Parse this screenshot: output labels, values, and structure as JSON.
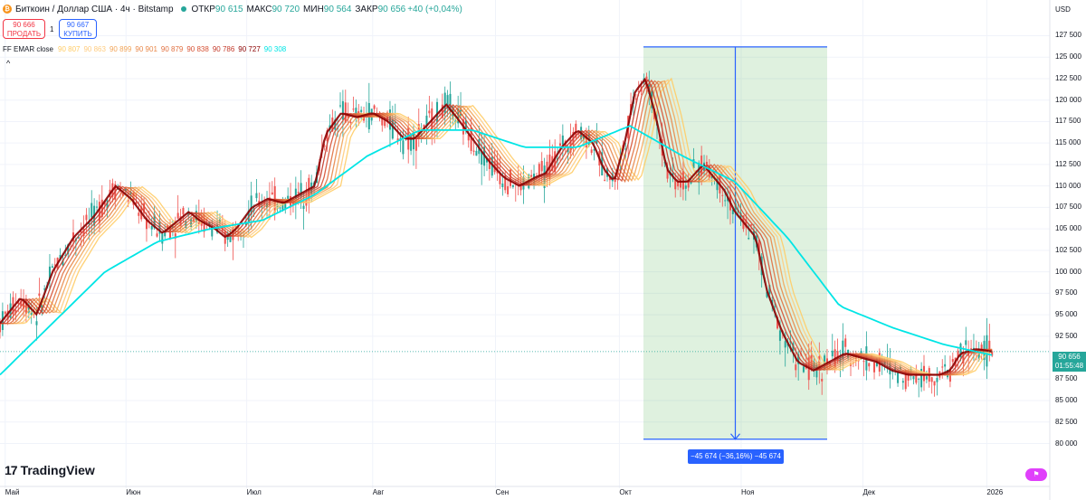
{
  "header": {
    "title": "Биткоин / Доллар США · 4ч · Bitstamp",
    "ohlc": [
      {
        "label": "ОТКР",
        "value": "90 615"
      },
      {
        "label": "МАКС",
        "value": "90 720"
      },
      {
        "label": "МИН",
        "value": "90 564"
      },
      {
        "label": "ЗАКР",
        "value": "90 656"
      }
    ],
    "change": "+40 (+0,04%)"
  },
  "trade": {
    "sell_price": "90 666",
    "sell_label": "ПРОДАТЬ",
    "spread": "1",
    "buy_price": "90 667",
    "buy_label": "КУПИТЬ"
  },
  "indicator": {
    "name": "FF EMAR close",
    "values": [
      "90 807",
      "90 863",
      "90 899",
      "90 901",
      "90 879",
      "90 838",
      "90 786",
      "90 727",
      "90 308"
    ],
    "colors": [
      "#ffcc66",
      "#ffcc80",
      "#f2a65a",
      "#e8884a",
      "#e07040",
      "#d65033",
      "#c43a2a",
      "#8b0000",
      "#00e5e5"
    ],
    "collapse_glyph": "^"
  },
  "price_axis": {
    "currency": "USD",
    "ticks": [
      "127 500",
      "125 000",
      "122 500",
      "120 000",
      "117 500",
      "115 000",
      "112 500",
      "110 000",
      "107 500",
      "105 000",
      "102 500",
      "100 000",
      "97 500",
      "95 000",
      "92 500",
      "87 500",
      "85 000",
      "82 500",
      "80 000"
    ],
    "tick_values": [
      127500,
      125000,
      122500,
      120000,
      117500,
      115000,
      112500,
      110000,
      107500,
      105000,
      102500,
      100000,
      97500,
      95000,
      92500,
      87500,
      85000,
      82500,
      80000
    ],
    "last_price": "90 656",
    "countdown": "01:55:48"
  },
  "time_axis": {
    "labels": [
      "Май",
      "Июн",
      "Июл",
      "Авг",
      "Сен",
      "Окт",
      "Ноя",
      "Дек",
      "2026"
    ]
  },
  "measure": {
    "label": "−45 674 (−36,16%) −45 674"
  },
  "brand": {
    "logo_mark": "17",
    "name": "TradingView"
  },
  "chart_data": {
    "type": "line",
    "title": "Биткоин / Доллар США · 4ч · Bitstamp",
    "x": [
      "Май",
      "Июн",
      "Июл",
      "Авг",
      "Сен",
      "Окт",
      "Ноя",
      "Дек",
      "2026"
    ],
    "ylim": [
      79000,
      128500
    ],
    "series": [
      {
        "name": "FF EMAR close",
        "values": [
          [
            0.0,
            94000
          ],
          [
            0.02,
            97000
          ],
          [
            0.035,
            95000
          ],
          [
            0.05,
            100000
          ],
          [
            0.07,
            104000
          ],
          [
            0.09,
            106500
          ],
          [
            0.11,
            110000
          ],
          [
            0.125,
            108500
          ],
          [
            0.14,
            106000
          ],
          [
            0.155,
            104500
          ],
          [
            0.165,
            105500
          ],
          [
            0.18,
            107000
          ],
          [
            0.19,
            106000
          ],
          [
            0.205,
            105000
          ],
          [
            0.215,
            104000
          ],
          [
            0.225,
            105000
          ],
          [
            0.24,
            107500
          ],
          [
            0.255,
            108500
          ],
          [
            0.27,
            108000
          ],
          [
            0.285,
            109000
          ],
          [
            0.3,
            110000
          ],
          [
            0.31,
            116000
          ],
          [
            0.325,
            118500
          ],
          [
            0.34,
            118000
          ],
          [
            0.355,
            118500
          ],
          [
            0.37,
            117500
          ],
          [
            0.385,
            115500
          ],
          [
            0.395,
            115500
          ],
          [
            0.41,
            117500
          ],
          [
            0.425,
            119500
          ],
          [
            0.435,
            118000
          ],
          [
            0.45,
            115500
          ],
          [
            0.465,
            113000
          ],
          [
            0.48,
            111000
          ],
          [
            0.495,
            110000
          ],
          [
            0.51,
            111000
          ],
          [
            0.52,
            111500
          ],
          [
            0.535,
            114500
          ],
          [
            0.55,
            116500
          ],
          [
            0.565,
            115000
          ],
          [
            0.575,
            112000
          ],
          [
            0.585,
            110500
          ],
          [
            0.595,
            115000
          ],
          [
            0.605,
            121000
          ],
          [
            0.615,
            122500
          ],
          [
            0.625,
            118000
          ],
          [
            0.635,
            112000
          ],
          [
            0.645,
            110500
          ],
          [
            0.655,
            110500
          ],
          [
            0.67,
            112500
          ],
          [
            0.68,
            111000
          ],
          [
            0.69,
            109500
          ],
          [
            0.7,
            107000
          ],
          [
            0.71,
            105500
          ],
          [
            0.72,
            104000
          ],
          [
            0.73,
            98000
          ],
          [
            0.745,
            93000
          ],
          [
            0.76,
            89500
          ],
          [
            0.775,
            88500
          ],
          [
            0.79,
            89500
          ],
          [
            0.805,
            90500
          ],
          [
            0.82,
            90000
          ],
          [
            0.835,
            89500
          ],
          [
            0.85,
            88500
          ],
          [
            0.865,
            88000
          ],
          [
            0.88,
            88000
          ],
          [
            0.895,
            88000
          ],
          [
            0.905,
            88500
          ],
          [
            0.915,
            90500
          ],
          [
            0.93,
            91000
          ],
          [
            0.945,
            90700
          ]
        ]
      },
      {
        "name": "",
        "color": "#00e5e5",
        "values": [
          [
            0.0,
            88000
          ],
          [
            0.05,
            94000
          ],
          [
            0.1,
            100000
          ],
          [
            0.15,
            103500
          ],
          [
            0.2,
            105000
          ],
          [
            0.25,
            106000
          ],
          [
            0.3,
            109000
          ],
          [
            0.35,
            113500
          ],
          [
            0.4,
            116500
          ],
          [
            0.45,
            116500
          ],
          [
            0.5,
            114500
          ],
          [
            0.55,
            114500
          ],
          [
            0.6,
            117000
          ],
          [
            0.65,
            113500
          ],
          [
            0.7,
            110500
          ],
          [
            0.75,
            104000
          ],
          [
            0.8,
            96000
          ],
          [
            0.85,
            93500
          ],
          [
            0.9,
            91500
          ],
          [
            0.945,
            90300
          ]
        ]
      }
    ],
    "measurement": {
      "from_price": 126200,
      "to_price": 80500,
      "change": -45674,
      "change_pct": -36.16
    },
    "grid": true,
    "legend": "top-left"
  }
}
